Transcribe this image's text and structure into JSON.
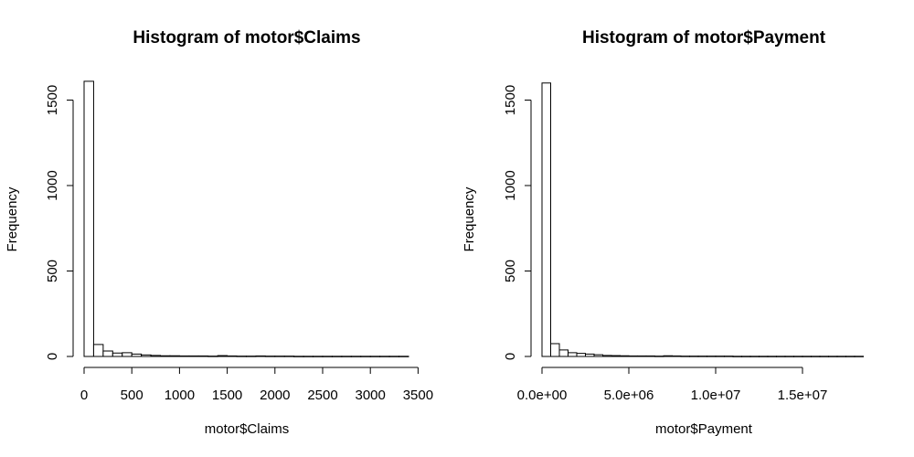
{
  "chart_data": [
    {
      "type": "bar",
      "title": "Histogram of motor$Claims",
      "xlabel": "motor$Claims",
      "ylabel": "Frequency",
      "bin_width": 100,
      "xlim": [
        0,
        3400
      ],
      "ylim": [
        0,
        1600
      ],
      "x_ticks": [
        0,
        500,
        1000,
        1500,
        2000,
        2500,
        3000,
        3500
      ],
      "x_tick_labels": [
        "0",
        "500",
        "1000",
        "1500",
        "2000",
        "2500",
        "3000",
        "3500"
      ],
      "y_ticks": [
        0,
        500,
        1000,
        1500
      ],
      "y_tick_labels": [
        "0",
        "500",
        "1000",
        "1500"
      ],
      "values": [
        1610,
        70,
        32,
        20,
        22,
        14,
        9,
        6,
        4,
        4,
        3,
        3,
        3,
        2,
        5,
        3,
        2,
        2,
        3,
        2,
        2,
        2,
        1,
        1,
        1,
        1,
        1,
        1,
        1,
        1,
        1,
        1,
        1,
        1
      ]
    },
    {
      "type": "bar",
      "title": "Histogram of motor$Payment",
      "xlabel": "motor$Payment",
      "ylabel": "Frequency",
      "bin_width": 500000,
      "xlim": [
        0,
        18500000
      ],
      "ylim": [
        0,
        1600
      ],
      "x_ticks": [
        0,
        5000000,
        10000000,
        15000000
      ],
      "x_tick_labels": [
        "0.0e+00",
        "5.0e+06",
        "1.0e+07",
        "1.5e+07"
      ],
      "y_ticks": [
        0,
        500,
        1000,
        1500
      ],
      "y_tick_labels": [
        "0",
        "500",
        "1000",
        "1500"
      ],
      "values": [
        1600,
        75,
        38,
        22,
        18,
        14,
        10,
        6,
        5,
        4,
        3,
        3,
        3,
        2,
        4,
        3,
        2,
        2,
        2,
        2,
        2,
        2,
        1,
        1,
        1,
        1,
        1,
        1,
        1,
        1,
        1,
        1,
        1,
        1,
        1,
        1,
        1
      ]
    }
  ]
}
